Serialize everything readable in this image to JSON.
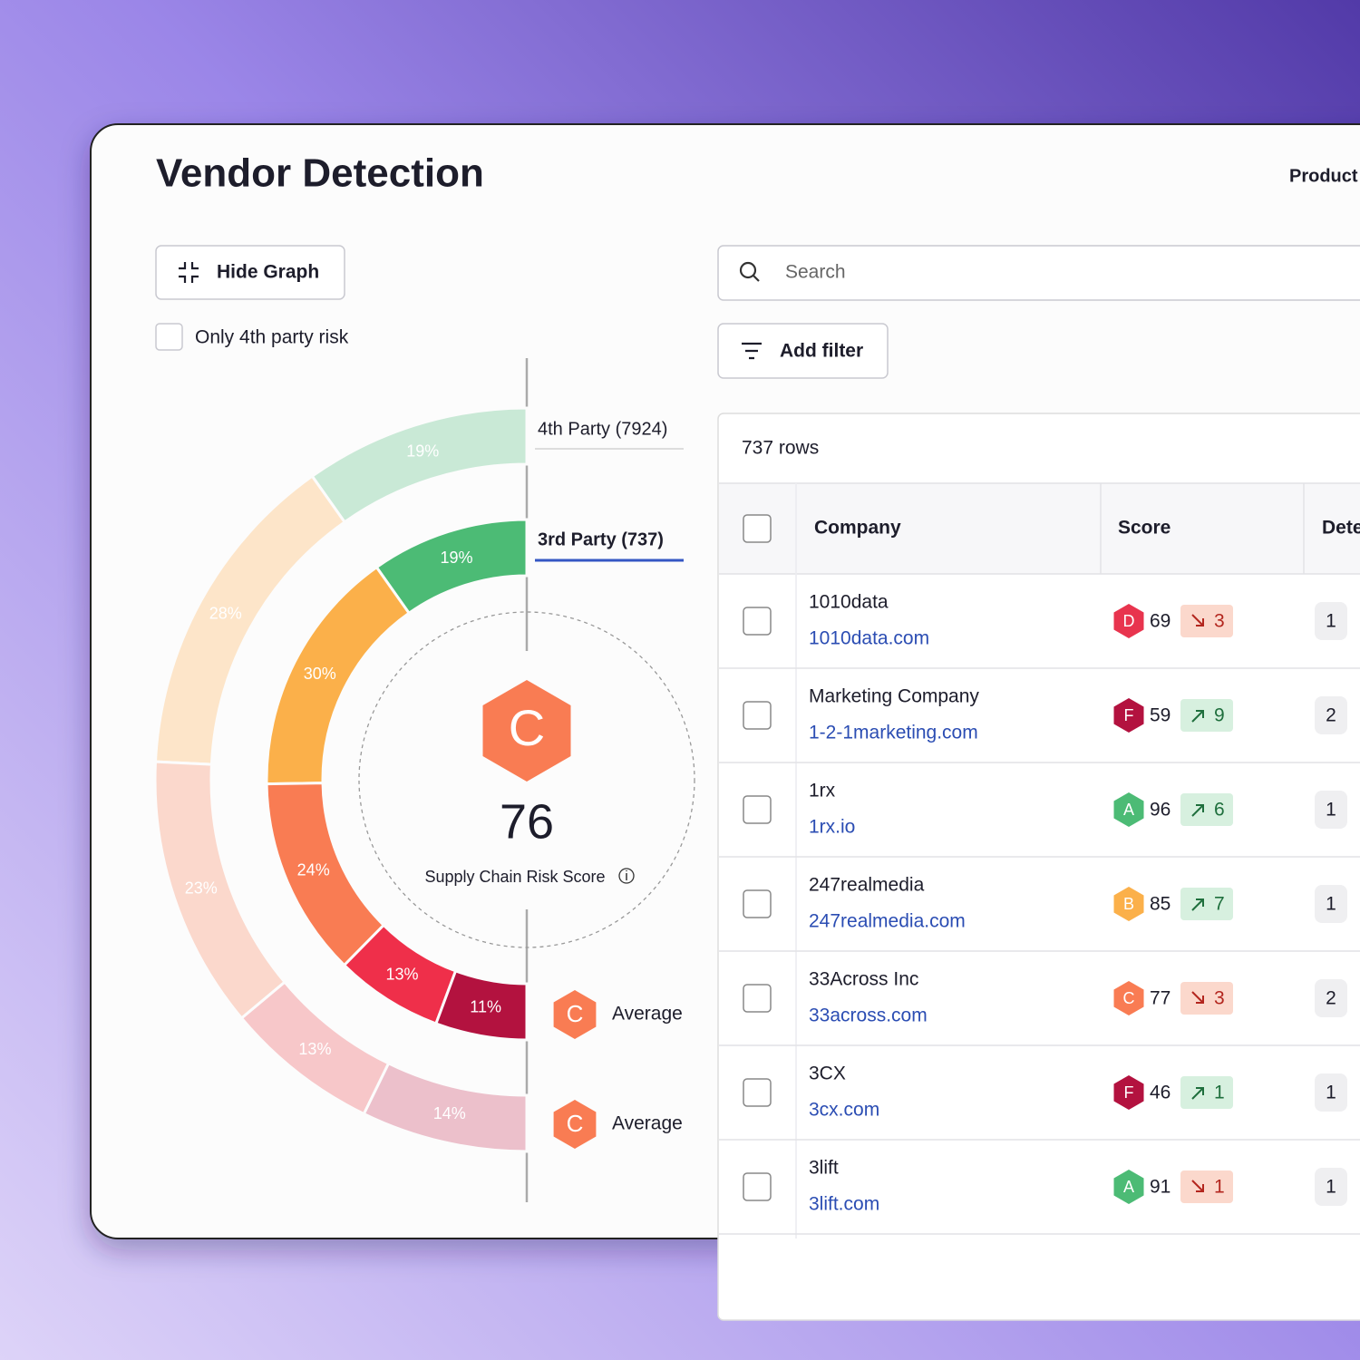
{
  "header": {
    "title": "Vendor Detection",
    "nav": "Product"
  },
  "controls": {
    "hide_graph": "Hide Graph",
    "only_4th": "Only 4th party risk",
    "search": "Search",
    "add_filter": "Add filter"
  },
  "chart_data": {
    "type": "donut",
    "series": [
      {
        "name": "4th Party (7924)",
        "values": [
          19,
          28,
          23,
          13,
          14
        ],
        "value_labels": [
          "19%",
          "28%",
          "23%",
          "13%",
          "14%"
        ],
        "colors": [
          "#c9e9d6",
          "#fde5c9",
          "#fbd8cc",
          "#f7c7c9",
          "#ecc0cb"
        ]
      },
      {
        "name": "3rd Party (737)",
        "values": [
          19,
          30,
          24,
          13,
          11
        ],
        "value_labels": [
          "19%",
          "30%",
          "24%",
          "13%",
          "11%"
        ],
        "colors": [
          "#4cbb75",
          "#fbb04a",
          "#f97c53",
          "#ef2f4a",
          "#b3123f"
        ]
      }
    ]
  },
  "score": {
    "grade": "C",
    "value": "76",
    "label": "Supply Chain Risk Score"
  },
  "legend": [
    {
      "grade": "C",
      "label": "Average"
    },
    {
      "grade": "C",
      "label": "Average"
    }
  ],
  "table": {
    "row_count": "737 rows",
    "columns": [
      "Company",
      "Score",
      "Dete"
    ],
    "rows": [
      {
        "company": "1010data",
        "domain": "1010data.com",
        "grade": "D",
        "score": "69",
        "trend": "down",
        "change": "3",
        "detections": "1"
      },
      {
        "company": "Marketing Company",
        "domain": "1-2-1marketing.com",
        "grade": "F",
        "score": "59",
        "trend": "up",
        "change": "9",
        "detections": "2"
      },
      {
        "company": "1rx",
        "domain": "1rx.io",
        "grade": "A",
        "score": "96",
        "trend": "up",
        "change": "6",
        "detections": "1"
      },
      {
        "company": "247realmedia",
        "domain": "247realmedia.com",
        "grade": "B",
        "score": "85",
        "trend": "up",
        "change": "7",
        "detections": "1"
      },
      {
        "company": "33Across Inc",
        "domain": "33across.com",
        "grade": "C",
        "score": "77",
        "trend": "down",
        "change": "3",
        "detections": "2"
      },
      {
        "company": "3CX",
        "domain": "3cx.com",
        "grade": "F",
        "score": "46",
        "trend": "up",
        "change": "1",
        "detections": "1"
      },
      {
        "company": "3lift",
        "domain": "3lift.com",
        "grade": "A",
        "score": "91",
        "trend": "down",
        "change": "1",
        "detections": "1"
      }
    ]
  }
}
